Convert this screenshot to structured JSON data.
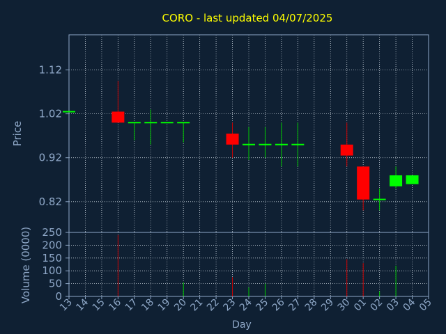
{
  "chart_data": {
    "type": "candlestick",
    "title": "CORO - last updated 04/07/2025",
    "xlabel": "Day",
    "price_panel": {
      "ylabel": "Price",
      "ylim": [
        0.75,
        1.2
      ],
      "yticks": [
        "0.82",
        "0.92",
        "1.02",
        "1.12"
      ],
      "ytick_values": [
        0.82,
        0.92,
        1.02,
        1.12
      ]
    },
    "volume_panel": {
      "ylabel": "Volume (0000)",
      "ylim": [
        0,
        250
      ],
      "yticks": [
        "0",
        "50",
        "100",
        "150",
        "200",
        "250"
      ],
      "ytick_values": [
        0,
        50,
        100,
        150,
        200,
        250
      ]
    },
    "categories": [
      "13",
      "14",
      "15",
      "16",
      "17",
      "18",
      "19",
      "20",
      "21",
      "22",
      "23",
      "24",
      "25",
      "26",
      "27",
      "28",
      "29",
      "30",
      "01",
      "02",
      "03",
      "04",
      "05"
    ],
    "candles": [
      {
        "x": "13",
        "open": 1.025,
        "high": 1.025,
        "low": 1.025,
        "close": 1.025
      },
      {
        "x": "16",
        "open": 1.025,
        "high": 1.095,
        "low": 1.0,
        "close": 1.0
      },
      {
        "x": "17",
        "open": 1.0,
        "high": 1.0,
        "low": 0.96,
        "close": 1.0
      },
      {
        "x": "18",
        "open": 1.0,
        "high": 1.03,
        "low": 0.95,
        "close": 1.0
      },
      {
        "x": "19",
        "open": 1.0,
        "high": 1.0,
        "low": 1.0,
        "close": 1.0
      },
      {
        "x": "20",
        "open": 1.0,
        "high": 1.0,
        "low": 0.955,
        "close": 1.0
      },
      {
        "x": "23",
        "open": 0.975,
        "high": 1.0,
        "low": 0.92,
        "close": 0.95
      },
      {
        "x": "24",
        "open": 0.95,
        "high": 0.99,
        "low": 0.915,
        "close": 0.95
      },
      {
        "x": "25",
        "open": 0.95,
        "high": 0.99,
        "low": 0.92,
        "close": 0.95
      },
      {
        "x": "26",
        "open": 0.95,
        "high": 1.0,
        "low": 0.9,
        "close": 0.95
      },
      {
        "x": "27",
        "open": 0.95,
        "high": 1.0,
        "low": 0.9,
        "close": 0.95
      },
      {
        "x": "30",
        "open": 0.95,
        "high": 1.0,
        "low": 0.9,
        "close": 0.925
      },
      {
        "x": "01",
        "open": 0.9,
        "high": 0.9,
        "low": 0.8,
        "close": 0.825
      },
      {
        "x": "02",
        "open": 0.825,
        "high": 0.85,
        "low": 0.8,
        "close": 0.825
      },
      {
        "x": "03",
        "open": 0.855,
        "high": 0.9,
        "low": 0.85,
        "close": 0.88
      },
      {
        "x": "04",
        "open": 0.86,
        "high": 0.88,
        "low": 0.86,
        "close": 0.88
      }
    ],
    "volume": [
      {
        "x": "16",
        "value": 240,
        "color": "red"
      },
      {
        "x": "20",
        "value": 55,
        "color": "green"
      },
      {
        "x": "23",
        "value": 75,
        "color": "red"
      },
      {
        "x": "24",
        "value": 35,
        "color": "green"
      },
      {
        "x": "25",
        "value": 50,
        "color": "green"
      },
      {
        "x": "30",
        "value": 145,
        "color": "red"
      },
      {
        "x": "01",
        "value": 130,
        "color": "red"
      },
      {
        "x": "02",
        "value": 20,
        "color": "green"
      },
      {
        "x": "03",
        "value": 120,
        "color": "green"
      }
    ],
    "grid": true,
    "colors": {
      "background": "#0f2033",
      "title": "#ffff00",
      "axis_text": "#8fa8c8",
      "frame": "#8fa8c8",
      "grid": "#c8d2dc",
      "up": "#00ff00",
      "down": "#ff0000",
      "up_wick": "#00cc00",
      "down_wick": "#cc0000"
    }
  }
}
